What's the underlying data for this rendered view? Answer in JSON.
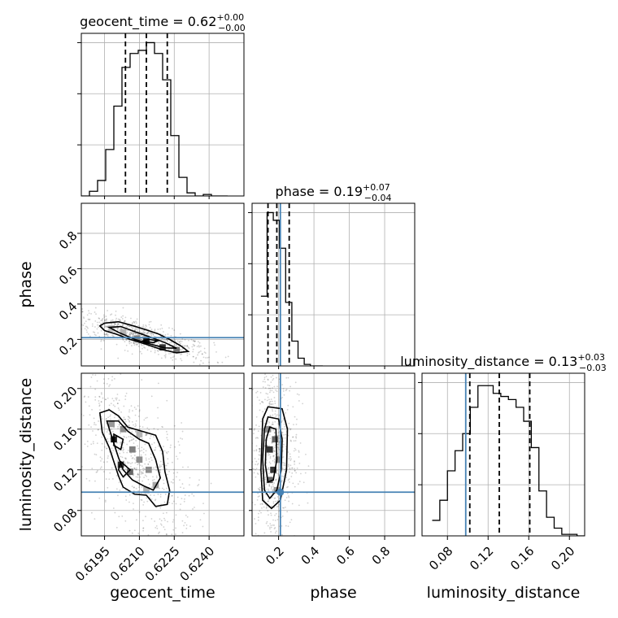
{
  "chart_data": {
    "type": "corner",
    "parameters": [
      "geocent_time",
      "phase",
      "luminosity_distance"
    ],
    "axis_labels": {
      "geocent_time": "geocent_time",
      "phase": "phase",
      "luminosity_distance": "luminosity_distance"
    },
    "titles": [
      {
        "param": "geocent_time",
        "text": "geocent_time = 0.62",
        "plus": "+0.00",
        "minus": "−0.00"
      },
      {
        "param": "phase",
        "text": "phase = 0.19",
        "plus": "+0.07",
        "minus": "−0.04"
      },
      {
        "param": "luminosity_distance",
        "text": "luminosity_distance = 0.13",
        "plus": "+0.03",
        "minus": "−0.03"
      }
    ],
    "ranges": {
      "geocent_time": [
        0.6185,
        0.6255
      ],
      "phase": [
        0.05,
        0.97
      ],
      "luminosity_distance": [
        0.055,
        0.215
      ]
    },
    "ticks": {
      "geocent_time": {
        "values": [
          0.6195,
          0.621,
          0.6225,
          0.624
        ],
        "labels": [
          "0.6195",
          "0.6210",
          "0.6225",
          "0.6240"
        ]
      },
      "phase": {
        "values": [
          0.2,
          0.4,
          0.6,
          0.8
        ],
        "labels": [
          "0.2",
          "0.4",
          "0.6",
          "0.8"
        ]
      },
      "luminosity_distance": {
        "values": [
          0.08,
          0.12,
          0.16,
          0.2
        ],
        "labels": [
          "0.08",
          "0.12",
          "0.16",
          "0.20"
        ]
      }
    },
    "quantiles": {
      "geocent_time": [
        0.6204,
        0.6213,
        0.6222
      ],
      "phase": [
        0.14,
        0.19,
        0.26
      ],
      "luminosity_distance": [
        0.102,
        0.131,
        0.161
      ]
    },
    "truths": {
      "geocent_time": null,
      "phase": 0.21,
      "luminosity_distance": 0.098
    },
    "histograms": {
      "geocent_time": {
        "edges": [
          0.6185,
          0.61885,
          0.6192,
          0.61955,
          0.6199,
          0.62025,
          0.6206,
          0.62095,
          0.6213,
          0.62165,
          0.622,
          0.62235,
          0.6227,
          0.62305,
          0.6234,
          0.62375,
          0.6241,
          0.62445,
          0.6248
        ],
        "counts": [
          0,
          0.03,
          0.1,
          0.3,
          0.58,
          0.83,
          0.92,
          0.94,
          0.99,
          0.92,
          0.75,
          0.39,
          0.12,
          0.02,
          0,
          0.01,
          0,
          0
        ]
      },
      "phase": {
        "edges": [
          0.1,
          0.135,
          0.17,
          0.205,
          0.24,
          0.275,
          0.31,
          0.345,
          0.38,
          0.415,
          0.45
        ],
        "counts": [
          0.45,
          0.99,
          0.94,
          0.76,
          0.41,
          0.16,
          0.05,
          0.01,
          0,
          0
        ]
      },
      "luminosity_distance": {
        "edges": [
          0.065,
          0.0725,
          0.08,
          0.0875,
          0.095,
          0.1025,
          0.11,
          0.1175,
          0.125,
          0.1325,
          0.14,
          0.1475,
          0.155,
          0.1625,
          0.17,
          0.1775,
          0.185,
          0.1925,
          0.2,
          0.2075,
          0.215
        ],
        "counts": [
          0.1,
          0.23,
          0.42,
          0.55,
          0.66,
          0.83,
          0.97,
          0.97,
          0.92,
          0.9,
          0.88,
          0.83,
          0.74,
          0.57,
          0.29,
          0.12,
          0.05,
          0.01,
          0.01,
          0
        ]
      }
    },
    "contours_2d": [
      {
        "x": "geocent_time",
        "y": "phase",
        "levels": [
          [
            [
              0.6193,
              0.276
            ],
            [
              0.6195,
              0.292
            ],
            [
              0.6201,
              0.3
            ],
            [
              0.6206,
              0.282
            ],
            [
              0.6212,
              0.258
            ],
            [
              0.6218,
              0.232
            ],
            [
              0.6223,
              0.2
            ],
            [
              0.6228,
              0.162
            ],
            [
              0.6231,
              0.132
            ],
            [
              0.6226,
              0.124
            ],
            [
              0.6219,
              0.145
            ],
            [
              0.6213,
              0.172
            ],
            [
              0.6206,
              0.2
            ],
            [
              0.62,
              0.23
            ],
            [
              0.6195,
              0.25
            ],
            [
              0.6193,
              0.276
            ]
          ],
          [
            [
              0.6197,
              0.268
            ],
            [
              0.6202,
              0.273
            ],
            [
              0.6208,
              0.244
            ],
            [
              0.6214,
              0.216
            ],
            [
              0.6221,
              0.182
            ],
            [
              0.6226,
              0.15
            ],
            [
              0.6221,
              0.152
            ],
            [
              0.6214,
              0.176
            ],
            [
              0.6208,
              0.2
            ],
            [
              0.6201,
              0.24
            ],
            [
              0.6197,
              0.268
            ]
          ],
          [
            [
              0.6214,
              0.2
            ],
            [
              0.6218,
              0.192
            ],
            [
              0.6216,
              0.182
            ],
            [
              0.6211,
              0.19
            ],
            [
              0.6214,
              0.2
            ]
          ]
        ]
      },
      {
        "x": "geocent_time",
        "y": "luminosity_distance",
        "levels": [
          [
            [
              0.6193,
              0.176
            ],
            [
              0.6197,
              0.179
            ],
            [
              0.6201,
              0.173
            ],
            [
              0.6205,
              0.162
            ],
            [
              0.6211,
              0.158
            ],
            [
              0.6217,
              0.154
            ],
            [
              0.622,
              0.138
            ],
            [
              0.6221,
              0.118
            ],
            [
              0.6223,
              0.1
            ],
            [
              0.6222,
              0.086
            ],
            [
              0.6217,
              0.084
            ],
            [
              0.6213,
              0.095
            ],
            [
              0.6208,
              0.096
            ],
            [
              0.6203,
              0.103
            ],
            [
              0.6201,
              0.114
            ],
            [
              0.6199,
              0.128
            ],
            [
              0.6197,
              0.142
            ],
            [
              0.6194,
              0.157
            ],
            [
              0.6193,
              0.176
            ]
          ],
          [
            [
              0.6196,
              0.168
            ],
            [
              0.6201,
              0.168
            ],
            [
              0.6205,
              0.158
            ],
            [
              0.621,
              0.15
            ],
            [
              0.6214,
              0.146
            ],
            [
              0.6217,
              0.13
            ],
            [
              0.6219,
              0.112
            ],
            [
              0.6216,
              0.1
            ],
            [
              0.6212,
              0.104
            ],
            [
              0.6207,
              0.11
            ],
            [
              0.6203,
              0.12
            ],
            [
              0.6201,
              0.132
            ],
            [
              0.6199,
              0.146
            ],
            [
              0.6196,
              0.168
            ]
          ],
          [
            [
              0.6199,
              0.155
            ],
            [
              0.6203,
              0.15
            ],
            [
              0.6202,
              0.14
            ],
            [
              0.6199,
              0.144
            ],
            [
              0.6199,
              0.155
            ]
          ],
          [
            [
              0.6202,
              0.128
            ],
            [
              0.6206,
              0.12
            ],
            [
              0.6203,
              0.113
            ],
            [
              0.6201,
              0.12
            ],
            [
              0.6202,
              0.128
            ]
          ]
        ]
      },
      {
        "x": "phase",
        "y": "luminosity_distance",
        "levels": [
          [
            [
              0.11,
              0.17
            ],
            [
              0.14,
              0.182
            ],
            [
              0.22,
              0.18
            ],
            [
              0.25,
              0.16
            ],
            [
              0.245,
              0.12
            ],
            [
              0.21,
              0.09
            ],
            [
              0.16,
              0.082
            ],
            [
              0.11,
              0.09
            ],
            [
              0.1,
              0.12
            ],
            [
              0.11,
              0.17
            ]
          ],
          [
            [
              0.12,
              0.16
            ],
            [
              0.14,
              0.172
            ],
            [
              0.2,
              0.17
            ],
            [
              0.22,
              0.15
            ],
            [
              0.215,
              0.12
            ],
            [
              0.19,
              0.1
            ],
            [
              0.15,
              0.092
            ],
            [
              0.12,
              0.1
            ],
            [
              0.11,
              0.13
            ],
            [
              0.12,
              0.16
            ]
          ],
          [
            [
              0.13,
              0.15
            ],
            [
              0.15,
              0.162
            ],
            [
              0.185,
              0.16
            ],
            [
              0.19,
              0.13
            ],
            [
              0.17,
              0.11
            ],
            [
              0.14,
              0.108
            ],
            [
              0.125,
              0.125
            ],
            [
              0.13,
              0.15
            ]
          ]
        ]
      }
    ],
    "density_cells_2d": [
      {
        "x": "geocent_time",
        "y": "phase",
        "cells": [
          [
            0.6213,
            0.192,
            0.9
          ],
          [
            0.622,
            0.155,
            0.8
          ],
          [
            0.6226,
            0.14,
            0.55
          ],
          [
            0.6209,
            0.205,
            0.5
          ],
          [
            0.6203,
            0.24,
            0.3
          ],
          [
            0.6198,
            0.262,
            0.25
          ]
        ]
      },
      {
        "x": "geocent_time",
        "y": "luminosity_distance",
        "cells": [
          [
            0.6199,
            0.15,
            0.9
          ],
          [
            0.6202,
            0.125,
            0.8
          ],
          [
            0.6206,
            0.118,
            0.6
          ],
          [
            0.621,
            0.13,
            0.45
          ],
          [
            0.6214,
            0.12,
            0.45
          ],
          [
            0.6207,
            0.14,
            0.5
          ],
          [
            0.6203,
            0.16,
            0.45
          ],
          [
            0.6217,
            0.105,
            0.35
          ],
          [
            0.6213,
            0.1,
            0.3
          ],
          [
            0.6198,
            0.165,
            0.4
          ],
          [
            0.621,
            0.155,
            0.3
          ]
        ]
      },
      {
        "x": "phase",
        "y": "luminosity_distance",
        "cells": [
          [
            0.15,
            0.14,
            0.8
          ],
          [
            0.17,
            0.12,
            0.8
          ],
          [
            0.15,
            0.11,
            0.6
          ],
          [
            0.18,
            0.15,
            0.6
          ],
          [
            0.14,
            0.16,
            0.45
          ],
          [
            0.19,
            0.1,
            0.4
          ],
          [
            0.2,
            0.13,
            0.5
          ]
        ]
      }
    ]
  }
}
